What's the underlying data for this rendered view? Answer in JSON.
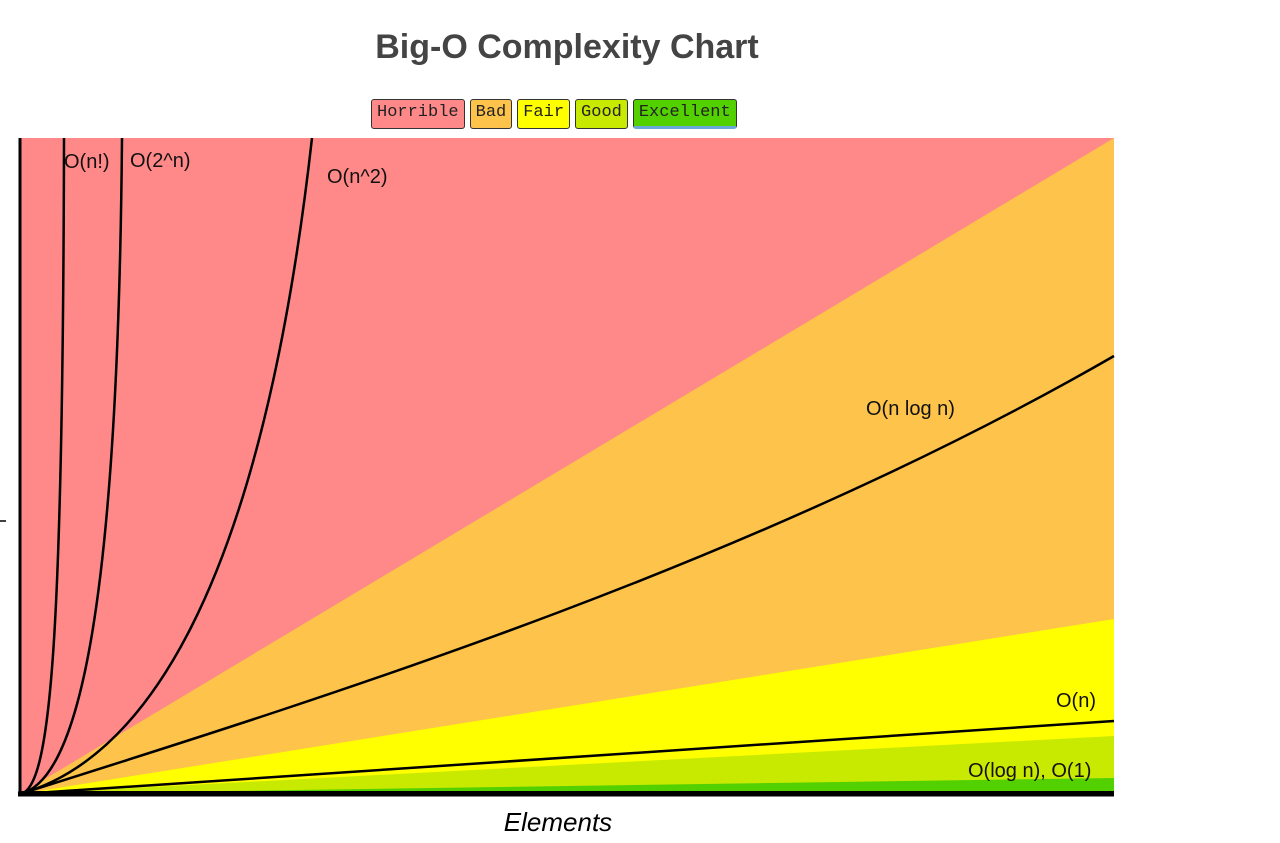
{
  "title": "Big-O Complexity Chart",
  "legend": [
    {
      "label": "Horrible",
      "color": "#ff8989"
    },
    {
      "label": "Bad",
      "color": "#fdc34b"
    },
    {
      "label": "Fair",
      "color": "#ffff00"
    },
    {
      "label": "Good",
      "color": "#c8ea00"
    },
    {
      "label": "Excellent",
      "color": "#53d000"
    }
  ],
  "chart_data": {
    "type": "line",
    "title": "Big-O Complexity Chart",
    "xlabel": "Elements",
    "ylabel": "",
    "xlim": [
      0,
      100
    ],
    "ylim": [
      0,
      100
    ],
    "grid": false,
    "legend_position": "top-center",
    "regions": [
      {
        "name": "Horrible",
        "color": "#ff8989"
      },
      {
        "name": "Bad",
        "color": "#fdc34b"
      },
      {
        "name": "Fair",
        "color": "#ffff00"
      },
      {
        "name": "Good",
        "color": "#c8ea00"
      },
      {
        "name": "Excellent",
        "color": "#53d000"
      }
    ],
    "series": [
      {
        "name": "O(n!)",
        "label": "O(n!)"
      },
      {
        "name": "O(2^n)",
        "label": "O(2^n)"
      },
      {
        "name": "O(n^2)",
        "label": "O(n^2)"
      },
      {
        "name": "O(n log n)",
        "label": "O(n log n)"
      },
      {
        "name": "O(n)",
        "label": "O(n)"
      },
      {
        "name": "O(log n), O(1)",
        "label": "O(log n), O(1)"
      }
    ]
  }
}
